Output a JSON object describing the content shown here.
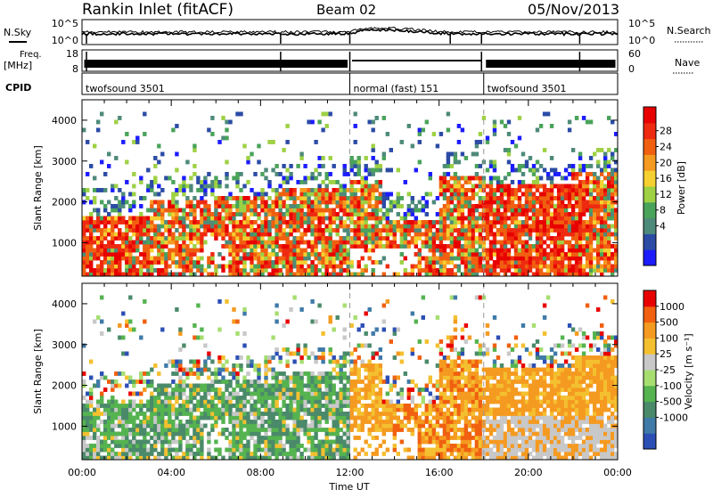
{
  "header": {
    "station": "Rankin Inlet (fitACF)",
    "beam": "Beam 02",
    "date": "05/Nov/2013"
  },
  "summary": {
    "nsky_label": "N.Sky",
    "nsearch_label": "N.Search",
    "noise_ticks": [
      "10^5",
      "10^0"
    ],
    "freq_label": "Freq.",
    "freq_unit": "[MHz]",
    "freq_ticks": [
      "18",
      "8"
    ],
    "nave_label": "Nave",
    "nave_ticks": [
      "60",
      "0"
    ],
    "cpid_label": "CPID",
    "cpid_segments": [
      {
        "label": "twofsound 3501",
        "start_hour": 0,
        "end_hour": 12
      },
      {
        "label": "normal (fast) 151",
        "start_hour": 12,
        "end_hour": 18
      },
      {
        "label": "twofsound 3501",
        "start_hour": 18,
        "end_hour": 24
      }
    ]
  },
  "colors": {
    "power_scale": [
      "#1c1cff",
      "#2b4ba5",
      "#4e8a7a",
      "#4aa35a",
      "#9ed144",
      "#f6d030",
      "#f59a20",
      "#f06010",
      "#ee2a10",
      "#e80000"
    ],
    "velocity_scale": [
      "#2c4fb5",
      "#3f7aa8",
      "#4a8a6a",
      "#55b350",
      "#a6de70",
      "#c8c8c8",
      "#f4c030",
      "#f59a20",
      "#f06010",
      "#e80000"
    ]
  },
  "chart_data": [
    {
      "type": "heatmap",
      "name": "power",
      "xlabel": "Time UT",
      "ylabel": "Slant Range [km]",
      "colorbar_label": "Power [dB]",
      "colorbar_ticks": [
        "28",
        "24",
        "20",
        "16",
        "12",
        "8",
        "4"
      ],
      "x_ticks": [
        "00:00",
        "04:00",
        "08:00",
        "12:00",
        "16:00",
        "20:00",
        "00:00"
      ],
      "y_ticks": [
        "4000",
        "3000",
        "2000",
        "1000"
      ],
      "xlim": [
        0,
        24
      ],
      "ylim": [
        180,
        4500
      ],
      "clim": [
        0,
        30
      ]
    },
    {
      "type": "heatmap",
      "name": "velocity",
      "xlabel": "Time UT",
      "ylabel": "Slant Range [km]",
      "colorbar_label": "Velocity [m s⁻¹]",
      "colorbar_ticks": [
        "1000",
        "500",
        "100",
        "25",
        "-25",
        "-100",
        "-500",
        "-1000"
      ],
      "x_ticks": [
        "00:00",
        "04:00",
        "08:00",
        "12:00",
        "16:00",
        "20:00",
        "00:00"
      ],
      "y_ticks": [
        "4000",
        "3000",
        "2000",
        "1000"
      ],
      "xlim": [
        0,
        24
      ],
      "ylim": [
        180,
        4500
      ]
    }
  ]
}
